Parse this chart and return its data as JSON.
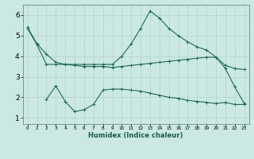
{
  "xlabel": "Humidex (Indice chaleur)",
  "background_color": "#cbe8e3",
  "grid_color": "#b0d8d0",
  "line_color": "#1a6b5a",
  "xlim": [
    -0.5,
    23.5
  ],
  "ylim": [
    0.7,
    6.5
  ],
  "xticks": [
    0,
    1,
    2,
    3,
    4,
    5,
    6,
    7,
    8,
    9,
    10,
    11,
    12,
    13,
    14,
    15,
    16,
    17,
    18,
    19,
    20,
    21,
    22,
    23
  ],
  "yticks": [
    1,
    2,
    3,
    4,
    5,
    6
  ],
  "line1_x": [
    0,
    1,
    2,
    3,
    4,
    5,
    6,
    7,
    8,
    9,
    10,
    11,
    12,
    13,
    14,
    15,
    16,
    17,
    18,
    19,
    20,
    21,
    22,
    23
  ],
  "line1_y": [
    5.4,
    4.6,
    4.1,
    3.7,
    3.6,
    3.55,
    3.5,
    3.5,
    3.5,
    3.45,
    3.5,
    3.55,
    3.6,
    3.65,
    3.7,
    3.75,
    3.8,
    3.85,
    3.9,
    3.95,
    3.95,
    3.55,
    3.4,
    3.35
  ],
  "line2_x": [
    0,
    1,
    2,
    3,
    4,
    5,
    6,
    7,
    8,
    9,
    10,
    11,
    12,
    13,
    14,
    15,
    16,
    17,
    18,
    19,
    20,
    21,
    22,
    23
  ],
  "line2_y": [
    5.35,
    4.55,
    3.6,
    3.6,
    3.6,
    3.6,
    3.6,
    3.6,
    3.6,
    3.6,
    4.0,
    4.6,
    5.35,
    6.2,
    5.85,
    5.35,
    5.0,
    4.7,
    4.45,
    4.3,
    3.95,
    3.4,
    2.5,
    1.7
  ],
  "line3_x": [
    2,
    3,
    4,
    5,
    6,
    7,
    8,
    9,
    10,
    11,
    12,
    13,
    14,
    15,
    16,
    17,
    18,
    19,
    20,
    21,
    22,
    23
  ],
  "line3_y": [
    1.9,
    2.55,
    1.8,
    1.3,
    1.4,
    1.65,
    2.35,
    2.4,
    2.4,
    2.35,
    2.3,
    2.2,
    2.1,
    2.0,
    1.95,
    1.85,
    1.8,
    1.75,
    1.7,
    1.75,
    1.65,
    1.65
  ]
}
